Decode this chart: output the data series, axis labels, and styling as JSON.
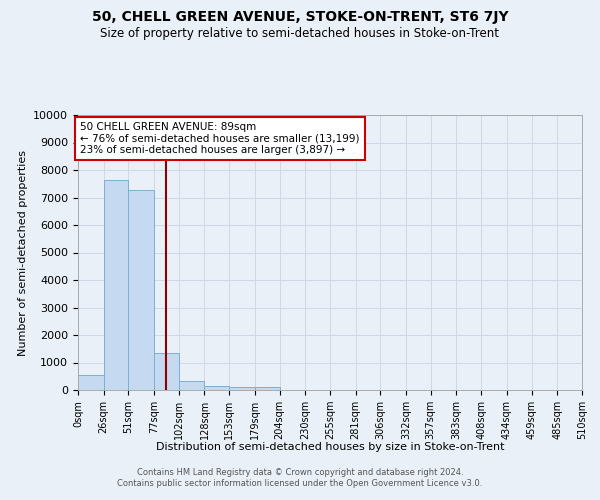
{
  "title": "50, CHELL GREEN AVENUE, STOKE-ON-TRENT, ST6 7JY",
  "subtitle": "Size of property relative to semi-detached houses in Stoke-on-Trent",
  "xlabel": "Distribution of semi-detached houses by size in Stoke-on-Trent",
  "ylabel": "Number of semi-detached properties",
  "footer_line1": "Contains HM Land Registry data © Crown copyright and database right 2024.",
  "footer_line2": "Contains public sector information licensed under the Open Government Licence v3.0.",
  "annotation_title": "50 CHELL GREEN AVENUE: 89sqm",
  "annotation_line1": "← 76% of semi-detached houses are smaller (13,199)",
  "annotation_line2": "23% of semi-detached houses are larger (3,897) →",
  "property_size": 89,
  "bin_edges": [
    0,
    26,
    51,
    77,
    102,
    128,
    153,
    179,
    204,
    230,
    255,
    281,
    306,
    332,
    357,
    383,
    408,
    434,
    459,
    485,
    510
  ],
  "bin_counts": [
    550,
    7650,
    7280,
    1350,
    310,
    145,
    120,
    100,
    0,
    0,
    0,
    0,
    0,
    0,
    0,
    0,
    0,
    0,
    0,
    0
  ],
  "bar_color": "#c5d9f0",
  "bar_edge_color": "#7bafd4",
  "vline_color": "#8b0000",
  "vline_x": 89,
  "ylim": [
    0,
    10000
  ],
  "yticks": [
    0,
    1000,
    2000,
    3000,
    4000,
    5000,
    6000,
    7000,
    8000,
    9000,
    10000
  ],
  "tick_labels": [
    "0sqm",
    "26sqm",
    "51sqm",
    "77sqm",
    "102sqm",
    "128sqm",
    "153sqm",
    "179sqm",
    "204sqm",
    "230sqm",
    "255sqm",
    "281sqm",
    "306sqm",
    "332sqm",
    "357sqm",
    "383sqm",
    "408sqm",
    "434sqm",
    "459sqm",
    "485sqm",
    "510sqm"
  ],
  "annotation_box_color": "#ffffff",
  "annotation_box_edge": "#cc0000",
  "grid_color": "#d0d8e8",
  "bg_color": "#eaf0f8"
}
